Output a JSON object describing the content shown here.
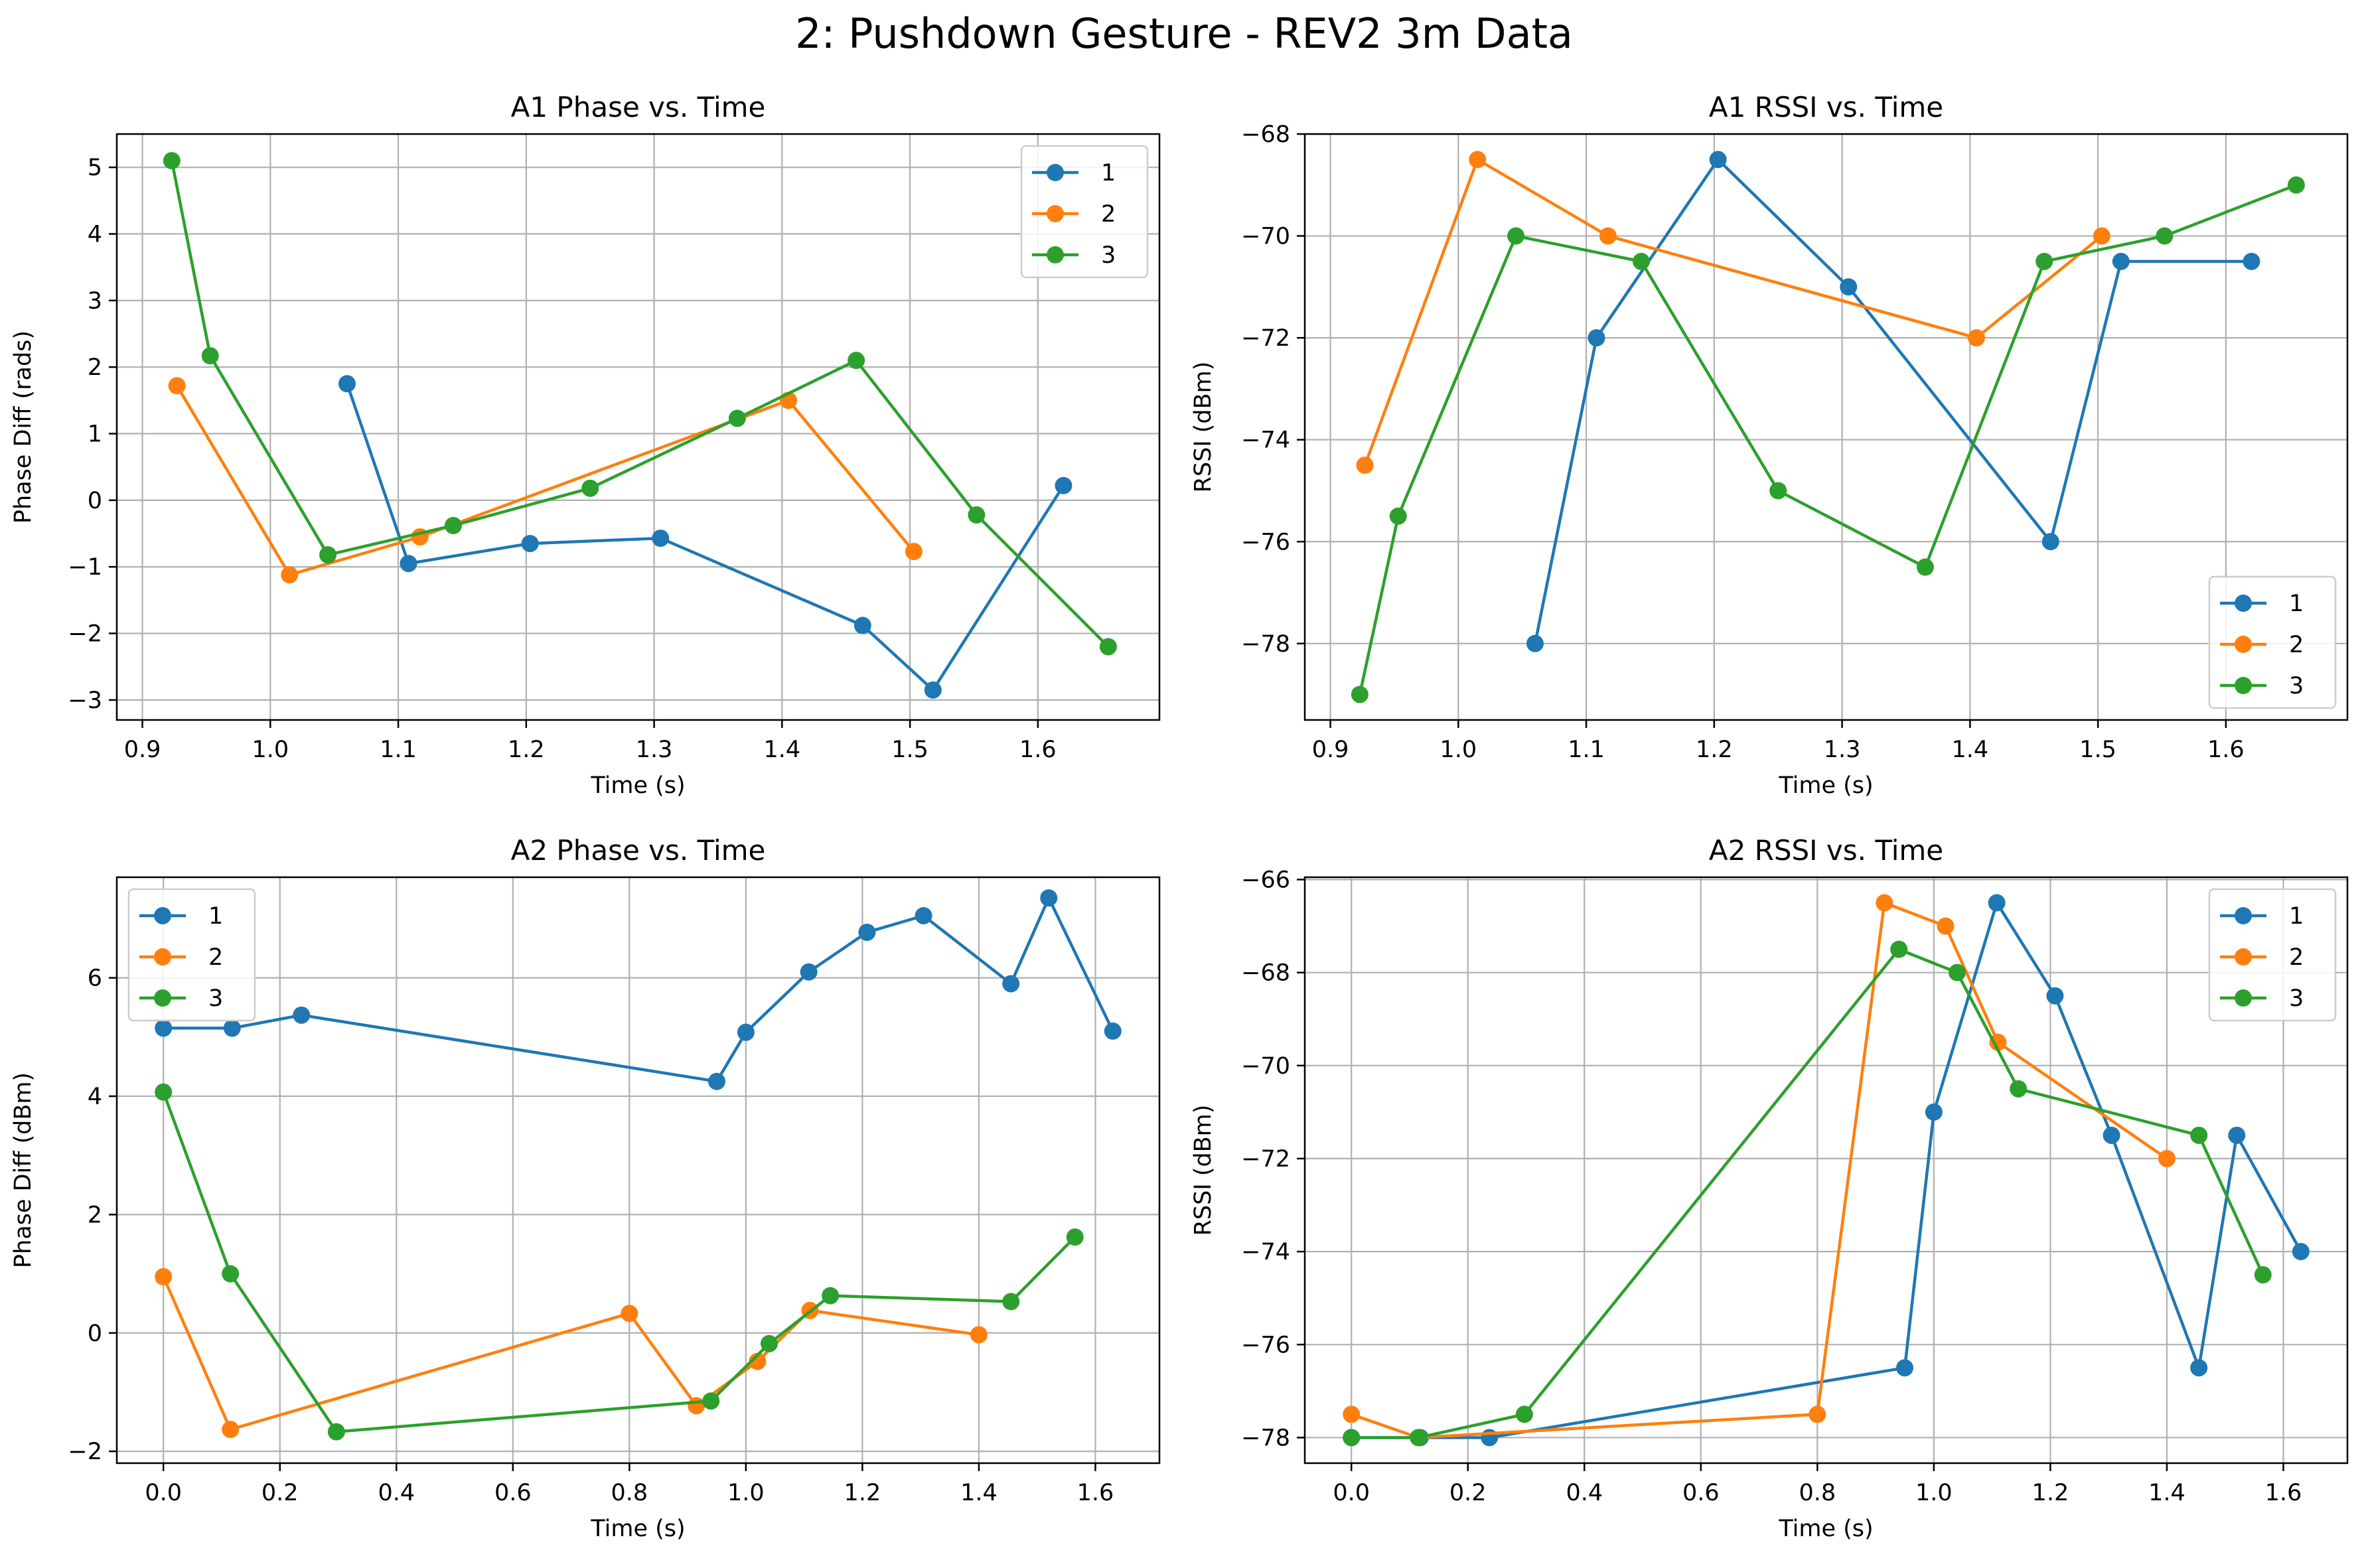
{
  "suptitle": "2: Pushdown Gesture - REV2 3m Data",
  "colors": {
    "1": "#1f77b4",
    "2": "#ff7f0e",
    "3": "#2ca02c",
    "grid": "#b0b0b0",
    "axes": "#000000"
  },
  "chart_data": [
    {
      "type": "line",
      "title": "A1 Phase vs. Time",
      "xlabel": "Time (s)",
      "ylabel": "Phase Diff (rads)",
      "xlim": [
        0.88,
        1.695
      ],
      "ylim": [
        -3.3,
        5.5
      ],
      "xticks": [
        0.9,
        1.0,
        1.1,
        1.2,
        1.3,
        1.4,
        1.5,
        1.6
      ],
      "xticklabels": [
        "0.9",
        "1.0",
        "1.1",
        "1.2",
        "1.3",
        "1.4",
        "1.5",
        "1.6"
      ],
      "yticks": [
        -3,
        -2,
        -1,
        0,
        1,
        2,
        3,
        4,
        5
      ],
      "yticklabels": [
        "−3",
        "−2",
        "−1",
        "0",
        "1",
        "2",
        "3",
        "4",
        "5"
      ],
      "grid": true,
      "legend_position": "upper-right",
      "series": [
        {
          "name": "1",
          "color": "#1f77b4",
          "x": [
            1.06,
            1.108,
            1.203,
            1.305,
            1.463,
            1.518,
            1.62
          ],
          "y": [
            1.75,
            -0.95,
            -0.65,
            -0.57,
            -1.88,
            -2.85,
            0.22
          ]
        },
        {
          "name": "2",
          "color": "#ff7f0e",
          "x": [
            0.927,
            1.015,
            1.117,
            1.405,
            1.503
          ],
          "y": [
            1.72,
            -1.12,
            -0.55,
            1.5,
            -0.77
          ]
        },
        {
          "name": "3",
          "color": "#2ca02c",
          "x": [
            0.923,
            0.953,
            1.045,
            1.143,
            1.25,
            1.365,
            1.458,
            1.552,
            1.655
          ],
          "y": [
            5.1,
            2.17,
            -0.82,
            -0.38,
            0.18,
            1.23,
            2.1,
            -0.22,
            -2.2
          ]
        }
      ]
    },
    {
      "type": "line",
      "title": "A1 RSSI vs. Time",
      "xlabel": "Time (s)",
      "ylabel": "RSSI (dBm)",
      "xlim": [
        0.88,
        1.695
      ],
      "ylim": [
        -79.5,
        -68.0
      ],
      "xticks": [
        0.9,
        1.0,
        1.1,
        1.2,
        1.3,
        1.4,
        1.5,
        1.6
      ],
      "xticklabels": [
        "0.9",
        "1.0",
        "1.1",
        "1.2",
        "1.3",
        "1.4",
        "1.5",
        "1.6"
      ],
      "yticks": [
        -78,
        -76,
        -74,
        -72,
        -70,
        -68
      ],
      "yticklabels": [
        "−78",
        "−76",
        "−74",
        "−72",
        "−70",
        "−68"
      ],
      "grid": true,
      "legend_position": "lower-right",
      "series": [
        {
          "name": "1",
          "color": "#1f77b4",
          "x": [
            1.06,
            1.108,
            1.203,
            1.305,
            1.463,
            1.518,
            1.62
          ],
          "y": [
            -78.0,
            -72.0,
            -68.5,
            -71.0,
            -76.0,
            -70.5,
            -70.5
          ]
        },
        {
          "name": "2",
          "color": "#ff7f0e",
          "x": [
            0.927,
            1.015,
            1.117,
            1.405,
            1.503
          ],
          "y": [
            -74.5,
            -68.5,
            -70.0,
            -72.0,
            -70.0
          ]
        },
        {
          "name": "3",
          "color": "#2ca02c",
          "x": [
            0.923,
            0.953,
            1.045,
            1.143,
            1.25,
            1.365,
            1.458,
            1.552,
            1.655
          ],
          "y": [
            -79.0,
            -75.5,
            -70.0,
            -70.5,
            -75.0,
            -76.5,
            -70.5,
            -70.0,
            -69.0
          ]
        }
      ]
    },
    {
      "type": "line",
      "title": "A2 Phase vs. Time",
      "xlabel": "Time (s)",
      "ylabel": "Phase Diff (dBm)",
      "xlim": [
        -0.08,
        1.71
      ],
      "ylim": [
        -2.2,
        7.7
      ],
      "xticks": [
        0.0,
        0.2,
        0.4,
        0.6,
        0.8,
        1.0,
        1.2,
        1.4,
        1.6
      ],
      "xticklabels": [
        "0.0",
        "0.2",
        "0.4",
        "0.6",
        "0.8",
        "1.0",
        "1.2",
        "1.4",
        "1.6"
      ],
      "yticks": [
        -2,
        0,
        2,
        4,
        6
      ],
      "yticklabels": [
        "−2",
        "0",
        "2",
        "4",
        "6"
      ],
      "grid": true,
      "legend_position": "upper-left",
      "series": [
        {
          "name": "1",
          "color": "#1f77b4",
          "x": [
            0.0,
            0.118,
            0.237,
            0.95,
            1.0,
            1.108,
            1.208,
            1.305,
            1.455,
            1.52,
            1.63
          ],
          "y": [
            5.15,
            5.15,
            5.37,
            4.25,
            5.08,
            6.1,
            6.77,
            7.05,
            5.9,
            7.35,
            5.1
          ]
        },
        {
          "name": "2",
          "color": "#ff7f0e",
          "x": [
            0.0,
            0.115,
            0.8,
            0.915,
            1.02,
            1.11,
            1.4
          ],
          "y": [
            0.95,
            -1.63,
            0.33,
            -1.23,
            -0.48,
            0.38,
            -0.03
          ]
        },
        {
          "name": "3",
          "color": "#2ca02c",
          "x": [
            0.0,
            0.115,
            0.297,
            0.94,
            1.04,
            1.145,
            1.455,
            1.565
          ],
          "y": [
            4.07,
            1.0,
            -1.67,
            -1.15,
            -0.18,
            0.63,
            0.53,
            1.62
          ]
        }
      ]
    },
    {
      "type": "line",
      "title": "A2 RSSI vs. Time",
      "xlabel": "Time (s)",
      "ylabel": "RSSI (dBm)",
      "xlim": [
        -0.08,
        1.71
      ],
      "ylim": [
        -78.55,
        -65.95
      ],
      "xticks": [
        0.0,
        0.2,
        0.4,
        0.6,
        0.8,
        1.0,
        1.2,
        1.4,
        1.6
      ],
      "xticklabels": [
        "0.0",
        "0.2",
        "0.4",
        "0.6",
        "0.8",
        "1.0",
        "1.2",
        "1.4",
        "1.6"
      ],
      "yticks": [
        -78,
        -76,
        -74,
        -72,
        -70,
        -68,
        -66
      ],
      "yticklabels": [
        "−78",
        "−76",
        "−74",
        "−72",
        "−70",
        "−68",
        "−66"
      ],
      "grid": true,
      "legend_position": "upper-right",
      "series": [
        {
          "name": "1",
          "color": "#1f77b4",
          "x": [
            0.0,
            0.118,
            0.237,
            0.95,
            1.0,
            1.108,
            1.208,
            1.305,
            1.455,
            1.52,
            1.63
          ],
          "y": [
            -78.0,
            -78.0,
            -78.0,
            -76.5,
            -71.0,
            -66.5,
            -68.5,
            -71.5,
            -76.5,
            -71.5,
            -74.0
          ]
        },
        {
          "name": "2",
          "color": "#ff7f0e",
          "x": [
            0.0,
            0.115,
            0.8,
            0.915,
            1.02,
            1.11,
            1.4
          ],
          "y": [
            -77.5,
            -78.0,
            -77.5,
            -66.5,
            -67.0,
            -69.5,
            -72.0
          ]
        },
        {
          "name": "3",
          "color": "#2ca02c",
          "x": [
            0.0,
            0.115,
            0.297,
            0.94,
            1.04,
            1.145,
            1.455,
            1.565
          ],
          "y": [
            -78.0,
            -78.0,
            -77.5,
            -67.5,
            -68.0,
            -70.5,
            -71.5,
            -74.5
          ]
        }
      ]
    }
  ]
}
